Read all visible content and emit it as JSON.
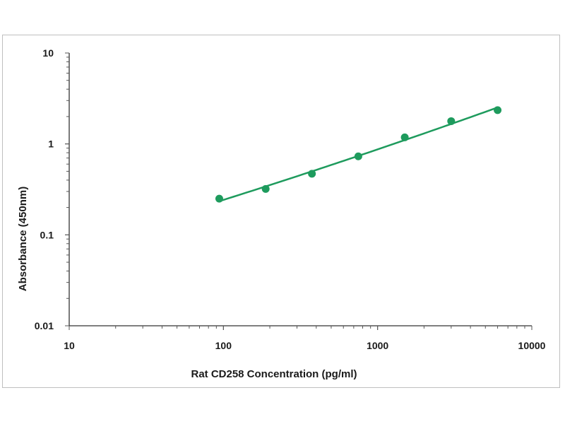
{
  "chart_data": {
    "type": "scatter",
    "title": "",
    "xlabel": "Rat CD258 Concentration (pg/ml)",
    "ylabel": "Absorbance (450nm)",
    "xscale": "log",
    "yscale": "log",
    "xlim": [
      10,
      10000
    ],
    "ylim": [
      0.01,
      10
    ],
    "x_tick_labels": [
      "10",
      "100",
      "1000",
      "10000"
    ],
    "y_tick_labels": [
      "0.01",
      "0.1",
      "1",
      "10"
    ],
    "grid": false,
    "legend": "none",
    "series": [
      {
        "x": [
          94,
          188,
          375,
          750,
          1500,
          3000,
          6000
        ],
        "y": [
          0.25,
          0.32,
          0.47,
          0.73,
          1.18,
          1.78,
          2.35
        ],
        "marker": "circle",
        "fit_line": true,
        "color": "#1e9b5d"
      }
    ]
  }
}
